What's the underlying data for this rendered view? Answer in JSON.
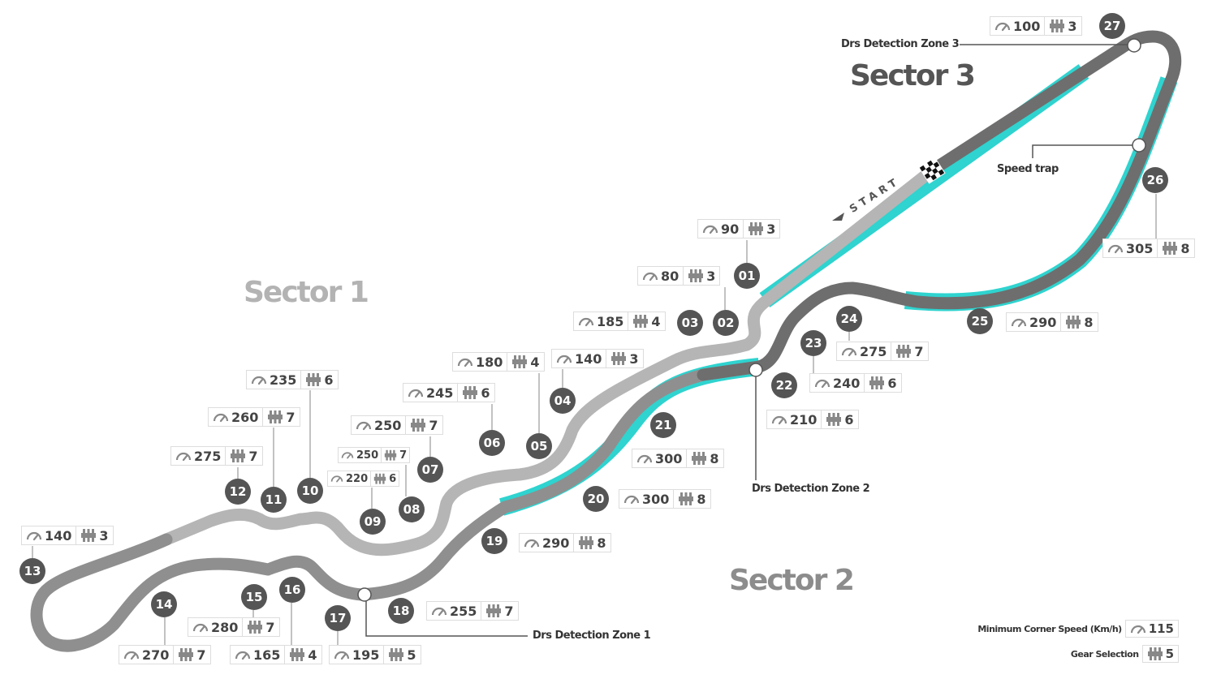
{
  "sectors": [
    {
      "label": "Sector 1",
      "color": "#b3b3b3"
    },
    {
      "label": "Sector 2",
      "color": "#8c8c8c"
    },
    {
      "label": "Sector 3",
      "color": "#555555"
    }
  ],
  "start_label": "START",
  "icons": {
    "speed": "speedometer-icon",
    "gear": "gear-icon",
    "flag": "checkered-flag-icon"
  },
  "colors": {
    "drs": "#2fd3cf",
    "corner": "#555555",
    "track_sector1": "#b5b5b5",
    "track_sector2": "#8f8f8f",
    "track_sector3": "#6e6e6e"
  },
  "corners": [
    {
      "num": "01",
      "speed": "90",
      "gear": "3"
    },
    {
      "num": "02",
      "speed": "80",
      "gear": "3"
    },
    {
      "num": "03",
      "speed": "185",
      "gear": "4"
    },
    {
      "num": "04",
      "speed": "140",
      "gear": "3"
    },
    {
      "num": "05",
      "speed": "180",
      "gear": "4"
    },
    {
      "num": "06",
      "speed": "245",
      "gear": "6"
    },
    {
      "num": "07",
      "speed": "250",
      "gear": "7"
    },
    {
      "num": "08",
      "speed": "250",
      "gear": "7"
    },
    {
      "num": "09",
      "speed": "220",
      "gear": "6"
    },
    {
      "num": "10",
      "speed": "235",
      "gear": "6"
    },
    {
      "num": "11",
      "speed": "260",
      "gear": "7"
    },
    {
      "num": "12",
      "speed": "275",
      "gear": "7"
    },
    {
      "num": "13",
      "speed": "140",
      "gear": "3"
    },
    {
      "num": "14",
      "speed": "270",
      "gear": "7"
    },
    {
      "num": "15",
      "speed": "280",
      "gear": "7"
    },
    {
      "num": "16",
      "speed": "165",
      "gear": "4"
    },
    {
      "num": "17",
      "speed": "195",
      "gear": "5"
    },
    {
      "num": "18",
      "speed": "255",
      "gear": "7"
    },
    {
      "num": "19",
      "speed": "290",
      "gear": "8"
    },
    {
      "num": "20",
      "speed": "300",
      "gear": "8"
    },
    {
      "num": "21",
      "speed": "300",
      "gear": "8"
    },
    {
      "num": "22",
      "speed": "210",
      "gear": "6"
    },
    {
      "num": "23",
      "speed": "240",
      "gear": "6"
    },
    {
      "num": "24",
      "speed": "275",
      "gear": "7"
    },
    {
      "num": "25",
      "speed": "290",
      "gear": "8"
    },
    {
      "num": "26",
      "speed": "305",
      "gear": "8"
    },
    {
      "num": "27",
      "speed": "100",
      "gear": "3"
    }
  ],
  "callouts": {
    "drs1": "Drs Detection Zone 1",
    "drs2": "Drs Detection Zone 2",
    "drs3": "Drs Detection Zone 3",
    "speed_trap": "Speed trap"
  },
  "legend": {
    "speed_label": "Minimum Corner Speed (Km/h)",
    "speed_value": "115",
    "gear_label": "Gear Selection",
    "gear_value": "5"
  }
}
